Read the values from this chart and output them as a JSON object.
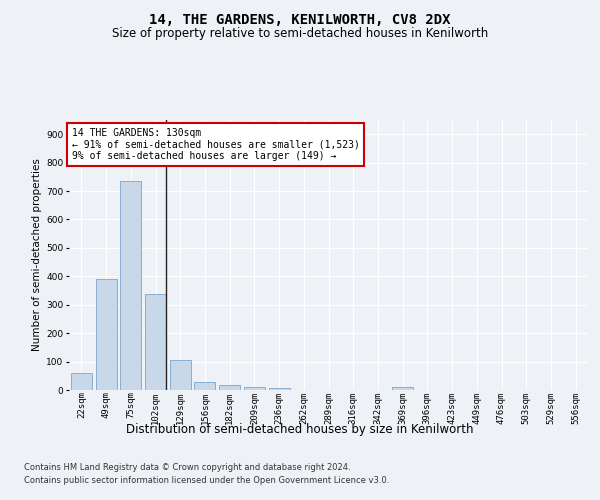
{
  "title": "14, THE GARDENS, KENILWORTH, CV8 2DX",
  "subtitle": "Size of property relative to semi-detached houses in Kenilworth",
  "xlabel": "Distribution of semi-detached houses by size in Kenilworth",
  "ylabel": "Number of semi-detached properties",
  "categories": [
    "22sqm",
    "49sqm",
    "75sqm",
    "102sqm",
    "129sqm",
    "156sqm",
    "182sqm",
    "209sqm",
    "236sqm",
    "262sqm",
    "289sqm",
    "316sqm",
    "342sqm",
    "369sqm",
    "396sqm",
    "423sqm",
    "449sqm",
    "476sqm",
    "503sqm",
    "529sqm",
    "556sqm"
  ],
  "values": [
    60,
    390,
    735,
    338,
    105,
    28,
    16,
    10,
    7,
    0,
    0,
    0,
    0,
    10,
    0,
    0,
    0,
    0,
    0,
    0,
    0
  ],
  "bar_color": "#c8d8e8",
  "bar_edge_color": "#6699cc",
  "highlight_bar_index": 3,
  "highlight_line_color": "#222222",
  "annotation_text": "14 THE GARDENS: 130sqm\n← 91% of semi-detached houses are smaller (1,523)\n9% of semi-detached houses are larger (149) →",
  "annotation_box_color": "#ffffff",
  "annotation_box_edge_color": "#cc0000",
  "ylim": [
    0,
    950
  ],
  "yticks": [
    0,
    100,
    200,
    300,
    400,
    500,
    600,
    700,
    800,
    900
  ],
  "footer_line1": "Contains HM Land Registry data © Crown copyright and database right 2024.",
  "footer_line2": "Contains public sector information licensed under the Open Government Licence v3.0.",
  "background_color": "#eef2f7",
  "plot_background_color": "#eef2f7",
  "grid_color": "#ffffff",
  "title_fontsize": 10,
  "subtitle_fontsize": 8.5,
  "xlabel_fontsize": 8.5,
  "ylabel_fontsize": 7.5,
  "tick_fontsize": 6.5,
  "annotation_fontsize": 7,
  "footer_fontsize": 6
}
